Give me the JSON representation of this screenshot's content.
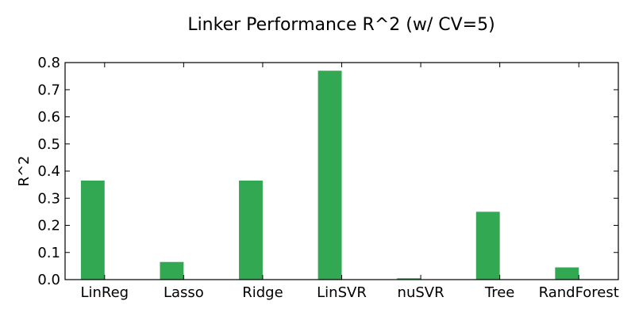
{
  "chart_data": {
    "type": "bar",
    "title": "Linker Performance R^2 (w/ CV=5)",
    "xlabel": "",
    "ylabel": "R^2",
    "categories": [
      "LinReg",
      "Lasso",
      "Ridge",
      "LinSVR",
      "nuSVR",
      "Tree",
      "RandForest"
    ],
    "values": [
      0.365,
      0.065,
      0.365,
      0.77,
      0.005,
      0.25,
      0.045
    ],
    "ylim": [
      0,
      0.8
    ],
    "yticks": [
      "0.0",
      "0.1",
      "0.2",
      "0.3",
      "0.4",
      "0.5",
      "0.6",
      "0.7",
      "0.8"
    ],
    "grid": false,
    "bar_color": "#33a852"
  }
}
